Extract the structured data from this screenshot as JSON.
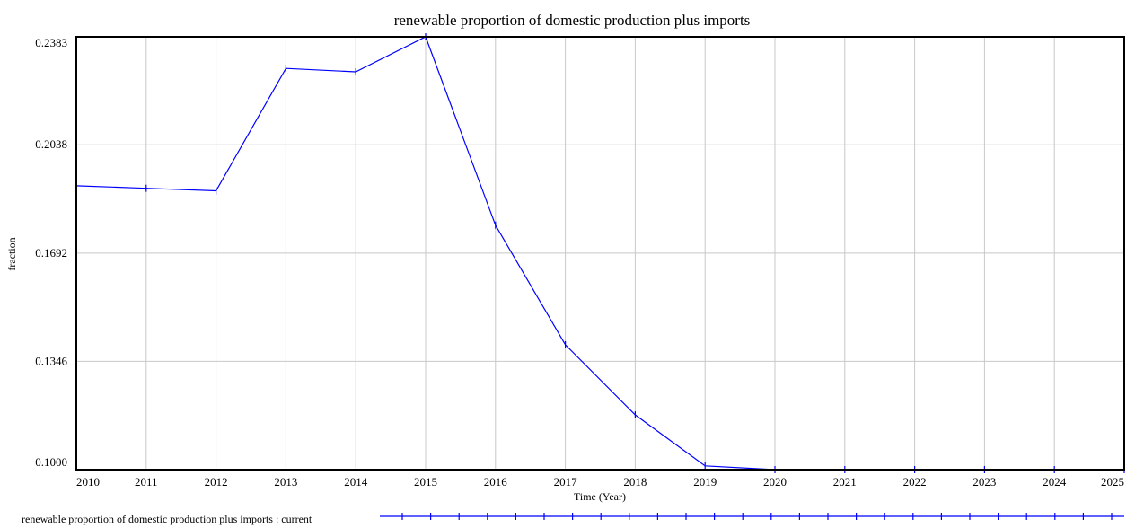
{
  "chart_data": {
    "type": "line",
    "title": "renewable proportion of domestic production plus imports",
    "xlabel": "Time (Year)",
    "ylabel": "fraction",
    "xlim": [
      2010,
      2025
    ],
    "ylim": [
      0.1,
      0.2383
    ],
    "x_ticks": [
      "2010",
      "2011",
      "2012",
      "2013",
      "2014",
      "2015",
      "2016",
      "2017",
      "2018",
      "2019",
      "2020",
      "2021",
      "2022",
      "2023",
      "2024",
      "2025"
    ],
    "y_ticks": [
      "0.1000",
      "0.1346",
      "0.1692",
      "0.2038",
      "0.2383"
    ],
    "grid": true,
    "legend_position": "bottom-left",
    "series": [
      {
        "name": "renewable proportion of domestic production plus imports : current",
        "color": "#0000ff",
        "marker_label": "1",
        "x": [
          2010,
          2011,
          2012,
          2013,
          2014,
          2015,
          2016,
          2017,
          2018,
          2019,
          2020,
          2021,
          2022,
          2023,
          2024,
          2025
        ],
        "y": [
          0.1907,
          0.1899,
          0.1891,
          0.2282,
          0.2271,
          0.2383,
          0.1781,
          0.1399,
          0.1175,
          0.1012,
          0.1,
          0.1,
          0.1,
          0.1,
          0.1,
          0.1
        ]
      }
    ]
  }
}
